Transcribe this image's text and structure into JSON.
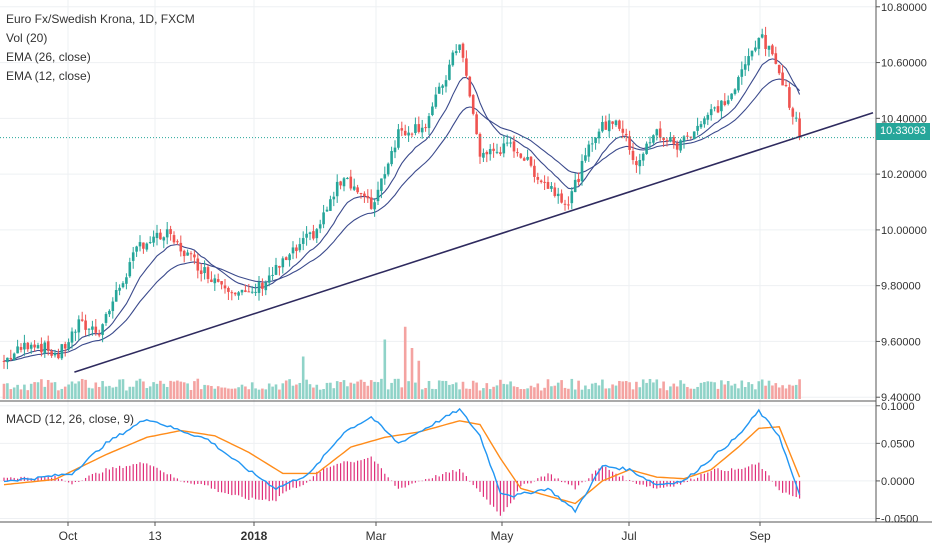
{
  "legend": {
    "title": "Euro Fx/Swedish Krona, 1D, FXCM",
    "vol": "Vol (20)",
    "ema26": "EMA (26, close)",
    "ema12": "EMA (12, close)",
    "macd": "MACD (12, 26, close, 9)"
  },
  "last_price": "10.33093",
  "colors": {
    "up": "#26a69a",
    "down": "#ef5350",
    "vol_up": "#8fd3c8",
    "vol_down": "#f4a3a1",
    "ema": "#3b4a8c",
    "trendline": "#2e2a5e",
    "macd_line": "#2196f3",
    "signal_line": "#ff8c1a",
    "hist": "#e0307a",
    "price_line": "#26a69a"
  },
  "chart_data": [
    {
      "type": "candlestick",
      "x_ticks": [
        "Oct",
        "13",
        "2018",
        "Mar",
        "May",
        "Jul",
        "Sep"
      ],
      "y_ticks": [
        "10.80000",
        "10.60000",
        "10.40000",
        "10.20000",
        "10.00000",
        "9.80000",
        "9.60000",
        "9.40000"
      ],
      "ylim": [
        9.39,
        10.81
      ],
      "last_value": 10.33093,
      "anchors": [
        [
          0,
          9.53
        ],
        [
          8,
          9.6
        ],
        [
          16,
          9.55
        ],
        [
          22,
          9.66
        ],
        [
          28,
          9.64
        ],
        [
          40,
          9.95
        ],
        [
          48,
          9.98
        ],
        [
          60,
          9.84
        ],
        [
          72,
          9.76
        ],
        [
          82,
          9.88
        ],
        [
          92,
          10.0
        ],
        [
          100,
          10.2
        ],
        [
          108,
          10.08
        ],
        [
          116,
          10.35
        ],
        [
          124,
          10.38
        ],
        [
          130,
          10.55
        ],
        [
          134,
          10.68
        ],
        [
          140,
          10.27
        ],
        [
          150,
          10.3
        ],
        [
          158,
          10.18
        ],
        [
          166,
          10.1
        ],
        [
          174,
          10.35
        ],
        [
          180,
          10.4
        ],
        [
          186,
          10.24
        ],
        [
          192,
          10.35
        ],
        [
          198,
          10.3
        ],
        [
          206,
          10.4
        ],
        [
          214,
          10.48
        ],
        [
          222,
          10.7
        ],
        [
          228,
          10.58
        ],
        [
          234,
          10.34
        ]
      ],
      "n_bars": 235,
      "trendline": [
        [
          6,
          9.49
        ],
        [
          234,
          10.42
        ]
      ],
      "volume_ylim": [
        0,
        100
      ],
      "volume_spikes": [
        [
          112,
          70
        ],
        [
          118,
          85
        ],
        [
          120,
          60
        ],
        [
          88,
          50
        ],
        [
          122,
          45
        ]
      ]
    },
    {
      "type": "line",
      "name": "MACD",
      "y_ticks": [
        "0.1000",
        "0.0500",
        "0.0000",
        "-0.0500"
      ],
      "ylim": [
        -0.052,
        0.105
      ],
      "macd_anchors": [
        [
          0,
          0.0
        ],
        [
          10,
          0.004
        ],
        [
          20,
          0.01
        ],
        [
          30,
          0.05
        ],
        [
          42,
          0.083
        ],
        [
          50,
          0.07
        ],
        [
          60,
          0.055
        ],
        [
          70,
          0.02
        ],
        [
          80,
          -0.01
        ],
        [
          90,
          0.01
        ],
        [
          100,
          0.065
        ],
        [
          108,
          0.085
        ],
        [
          116,
          0.05
        ],
        [
          124,
          0.07
        ],
        [
          134,
          0.095
        ],
        [
          140,
          0.06
        ],
        [
          146,
          -0.015
        ],
        [
          150,
          -0.02
        ],
        [
          160,
          -0.01
        ],
        [
          168,
          -0.04
        ],
        [
          176,
          0.02
        ],
        [
          184,
          0.015
        ],
        [
          192,
          -0.005
        ],
        [
          200,
          0.0
        ],
        [
          208,
          0.03
        ],
        [
          216,
          0.06
        ],
        [
          222,
          0.093
        ],
        [
          228,
          0.06
        ],
        [
          234,
          -0.02
        ]
      ],
      "signal_anchors": [
        [
          0,
          -0.005
        ],
        [
          15,
          0.002
        ],
        [
          30,
          0.035
        ],
        [
          42,
          0.058
        ],
        [
          52,
          0.067
        ],
        [
          62,
          0.06
        ],
        [
          72,
          0.038
        ],
        [
          82,
          0.01
        ],
        [
          92,
          0.01
        ],
        [
          102,
          0.045
        ],
        [
          112,
          0.058
        ],
        [
          122,
          0.065
        ],
        [
          134,
          0.08
        ],
        [
          140,
          0.075
        ],
        [
          146,
          0.03
        ],
        [
          152,
          -0.01
        ],
        [
          160,
          -0.02
        ],
        [
          168,
          -0.03
        ],
        [
          176,
          0.0
        ],
        [
          184,
          0.015
        ],
        [
          192,
          0.005
        ],
        [
          200,
          0.003
        ],
        [
          208,
          0.015
        ],
        [
          216,
          0.045
        ],
        [
          222,
          0.07
        ],
        [
          228,
          0.072
        ],
        [
          234,
          0.005
        ]
      ]
    }
  ]
}
